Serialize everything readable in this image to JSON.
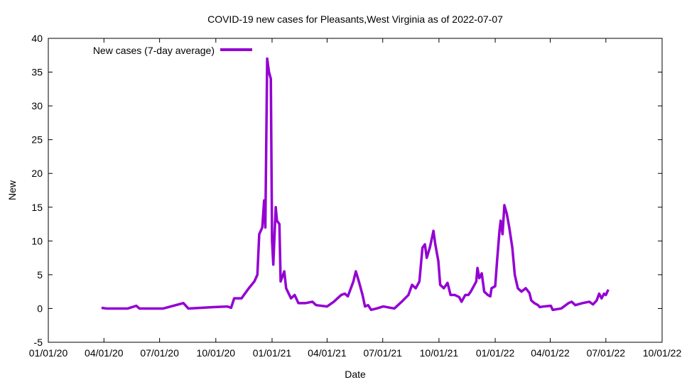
{
  "chart_data": {
    "type": "line",
    "title": "COVID-19 new cases for Pleasants,West Virginia as of 2022-07-07",
    "xlabel": "Date",
    "ylabel": "New",
    "x_units": "days since 2020-01-01",
    "xlim": [
      0,
      1004
    ],
    "ylim": [
      -5,
      40
    ],
    "yticks": [
      -5,
      0,
      5,
      10,
      15,
      20,
      25,
      30,
      35,
      40
    ],
    "xticks": [
      {
        "day": 0,
        "label": "01/01/20"
      },
      {
        "day": 91,
        "label": "04/01/20"
      },
      {
        "day": 182,
        "label": "07/01/20"
      },
      {
        "day": 274,
        "label": "10/01/20"
      },
      {
        "day": 366,
        "label": "01/01/21"
      },
      {
        "day": 456,
        "label": "04/01/21"
      },
      {
        "day": 547,
        "label": "07/01/21"
      },
      {
        "day": 639,
        "label": "10/01/21"
      },
      {
        "day": 731,
        "label": "01/01/22"
      },
      {
        "day": 821,
        "label": "04/01/22"
      },
      {
        "day": 912,
        "label": "07/01/22"
      },
      {
        "day": 1004,
        "label": "10/01/22"
      }
    ],
    "grid": false,
    "legend_position": "top-left",
    "series": [
      {
        "name": "New cases (7-day average)",
        "color": "#9400d3",
        "x": [
          87,
          95,
          130,
          144,
          149,
          188,
          221,
          229,
          270,
          293,
          299,
          304,
          316,
          328,
          337,
          342,
          345,
          350,
          353,
          355,
          358,
          361,
          364,
          366,
          368,
          372,
          374,
          378,
          380,
          382,
          386,
          389,
          397,
          403,
          409,
          421,
          432,
          438,
          456,
          467,
          479,
          485,
          490,
          499,
          503,
          508,
          514,
          518,
          523,
          528,
          537,
          548,
          566,
          578,
          589,
          595,
          601,
          607,
          609,
          612,
          616,
          619,
          624,
          626,
          630,
          633,
          638,
          641,
          647,
          653,
          658,
          665,
          672,
          676,
          682,
          687,
          691,
          700,
          702,
          705,
          709,
          713,
          719,
          723,
          725,
          731,
          734,
          738,
          740,
          743,
          746,
          750,
          754,
          759,
          763,
          768,
          774,
          781,
          787,
          790,
          795,
          801,
          804,
          810,
          822,
          825,
          839,
          851,
          856,
          862,
          874,
          885,
          891,
          897,
          901,
          905,
          909,
          912,
          916
        ],
        "values": [
          0.1,
          0,
          0,
          0.4,
          0,
          0,
          0.8,
          0,
          0.2,
          0.3,
          0.1,
          1.5,
          1.5,
          3,
          4,
          5,
          11,
          12,
          16,
          12,
          37,
          35,
          34,
          10,
          6.5,
          15,
          13,
          12.5,
          4,
          4.5,
          5.5,
          3,
          1.5,
          2,
          0.8,
          0.8,
          1,
          0.5,
          0.3,
          1,
          2,
          2.2,
          1.8,
          4,
          5.5,
          4,
          2,
          0.3,
          0.5,
          -0.2,
          0,
          0.3,
          0,
          1,
          2,
          3.5,
          3,
          4,
          6,
          9,
          9.5,
          7.5,
          9,
          9.8,
          11.5,
          9.5,
          7,
          3.5,
          3,
          3.8,
          2,
          2,
          1.7,
          1,
          2,
          2,
          2.5,
          4,
          6,
          4.5,
          5.2,
          2.5,
          2,
          1.8,
          3,
          3.3,
          7,
          11.5,
          13,
          11,
          15.3,
          14,
          12,
          9,
          5,
          3,
          2.5,
          3,
          2.3,
          1.2,
          0.8,
          0.5,
          0.2,
          0.3,
          0.4,
          -0.2,
          0,
          0.8,
          1,
          0.5,
          0.8,
          1,
          0.6,
          1.2,
          2.2,
          1.5,
          2.2,
          2,
          2.8
        ]
      }
    ]
  }
}
